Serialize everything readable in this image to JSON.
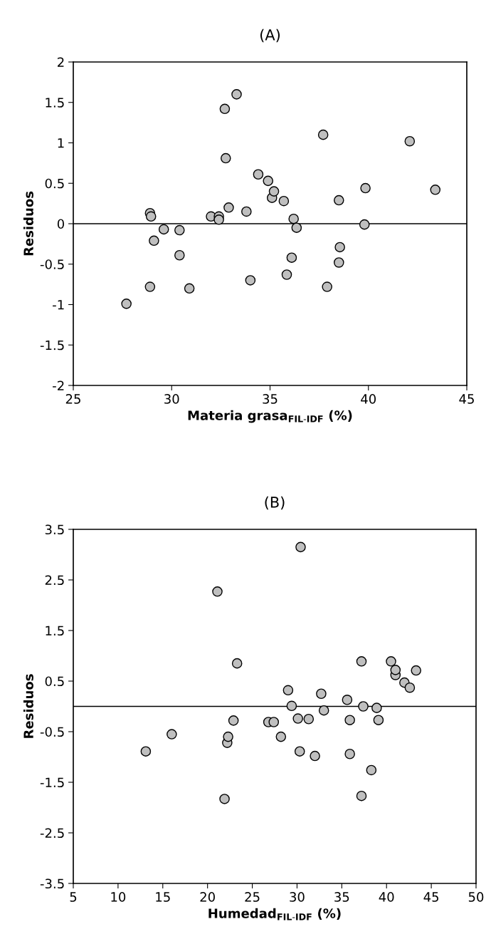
{
  "chart_data": [
    {
      "type": "scatter",
      "title": "(A)",
      "xlabel": "Materia grasa$_{FIL-IDF}$ (%)",
      "ylabel": "Residuos",
      "xlim": [
        25,
        45
      ],
      "xticks": [
        25,
        30,
        35,
        40,
        45
      ],
      "ylim": [
        -2,
        2
      ],
      "yticks": [
        -2,
        -1.5,
        -1,
        -0.5,
        0,
        0.5,
        1,
        1.5,
        2
      ],
      "grid": false,
      "legend": false,
      "marker": "circle",
      "ref_lines": [
        {
          "axis": "y",
          "value": 0,
          "color": "#000000"
        }
      ],
      "series": [
        {
          "color": "#bfbfbf",
          "x": [
            27.7,
            28.9,
            28.95,
            28.9,
            29.1,
            29.6,
            30.4,
            30.4,
            30.9,
            32.0,
            32.4,
            32.4,
            32.7,
            32.75,
            32.9,
            33.3,
            33.8,
            34.0,
            34.4,
            34.9,
            35.1,
            35.2,
            35.7,
            35.85,
            36.1,
            36.2,
            36.35,
            37.7,
            37.9,
            38.5,
            38.5,
            38.55,
            39.8,
            39.85,
            42.1,
            43.4
          ],
          "values": [
            -0.99,
            0.13,
            0.09,
            -0.78,
            -0.21,
            -0.07,
            -0.08,
            -0.39,
            -0.8,
            0.09,
            0.09,
            0.05,
            1.42,
            0.81,
            0.2,
            1.6,
            0.15,
            -0.7,
            0.61,
            0.53,
            0.32,
            0.4,
            0.28,
            -0.63,
            -0.42,
            0.06,
            -0.05,
            1.1,
            -0.78,
            0.29,
            -0.48,
            -0.29,
            -0.01,
            0.44,
            1.02,
            0.42
          ]
        }
      ]
    },
    {
      "type": "scatter",
      "title": "(B)",
      "xlabel": "Humedad$_{FIL-IDF}$ (%)",
      "ylabel": "Residuos",
      "xlim": [
        5,
        50
      ],
      "xticks": [
        5,
        10,
        15,
        20,
        25,
        30,
        35,
        40,
        45,
        50
      ],
      "ylim": [
        -3.5,
        3.5
      ],
      "yticks": [
        -3.5,
        -2.5,
        -1.5,
        -0.5,
        0.5,
        1.5,
        2.5,
        3.5
      ],
      "grid": false,
      "legend": false,
      "marker": "circle",
      "ref_lines": [
        {
          "axis": "y",
          "value": 0,
          "color": "#000000"
        }
      ],
      "series": [
        {
          "color": "#bfbfbf",
          "x": [
            13.1,
            16.0,
            21.1,
            21.9,
            22.2,
            22.3,
            22.9,
            23.3,
            26.8,
            27.4,
            28.2,
            29.0,
            29.4,
            30.1,
            30.3,
            30.4,
            31.3,
            32.0,
            32.7,
            33.0,
            35.6,
            35.9,
            35.9,
            37.2,
            37.2,
            37.4,
            38.3,
            38.9,
            39.1,
            40.5,
            41.0,
            41.0,
            42.0,
            42.6,
            43.3
          ],
          "values": [
            -0.89,
            -0.55,
            2.27,
            -1.83,
            -0.72,
            -0.6,
            -0.28,
            0.85,
            -0.31,
            -0.31,
            -0.6,
            0.32,
            0.01,
            -0.24,
            -0.89,
            3.15,
            -0.25,
            -0.98,
            0.25,
            -0.08,
            0.13,
            -0.27,
            -0.94,
            0.89,
            -1.77,
            0.0,
            -1.26,
            -0.03,
            -0.27,
            0.89,
            0.62,
            0.72,
            0.47,
            0.37,
            0.71
          ]
        }
      ]
    }
  ]
}
